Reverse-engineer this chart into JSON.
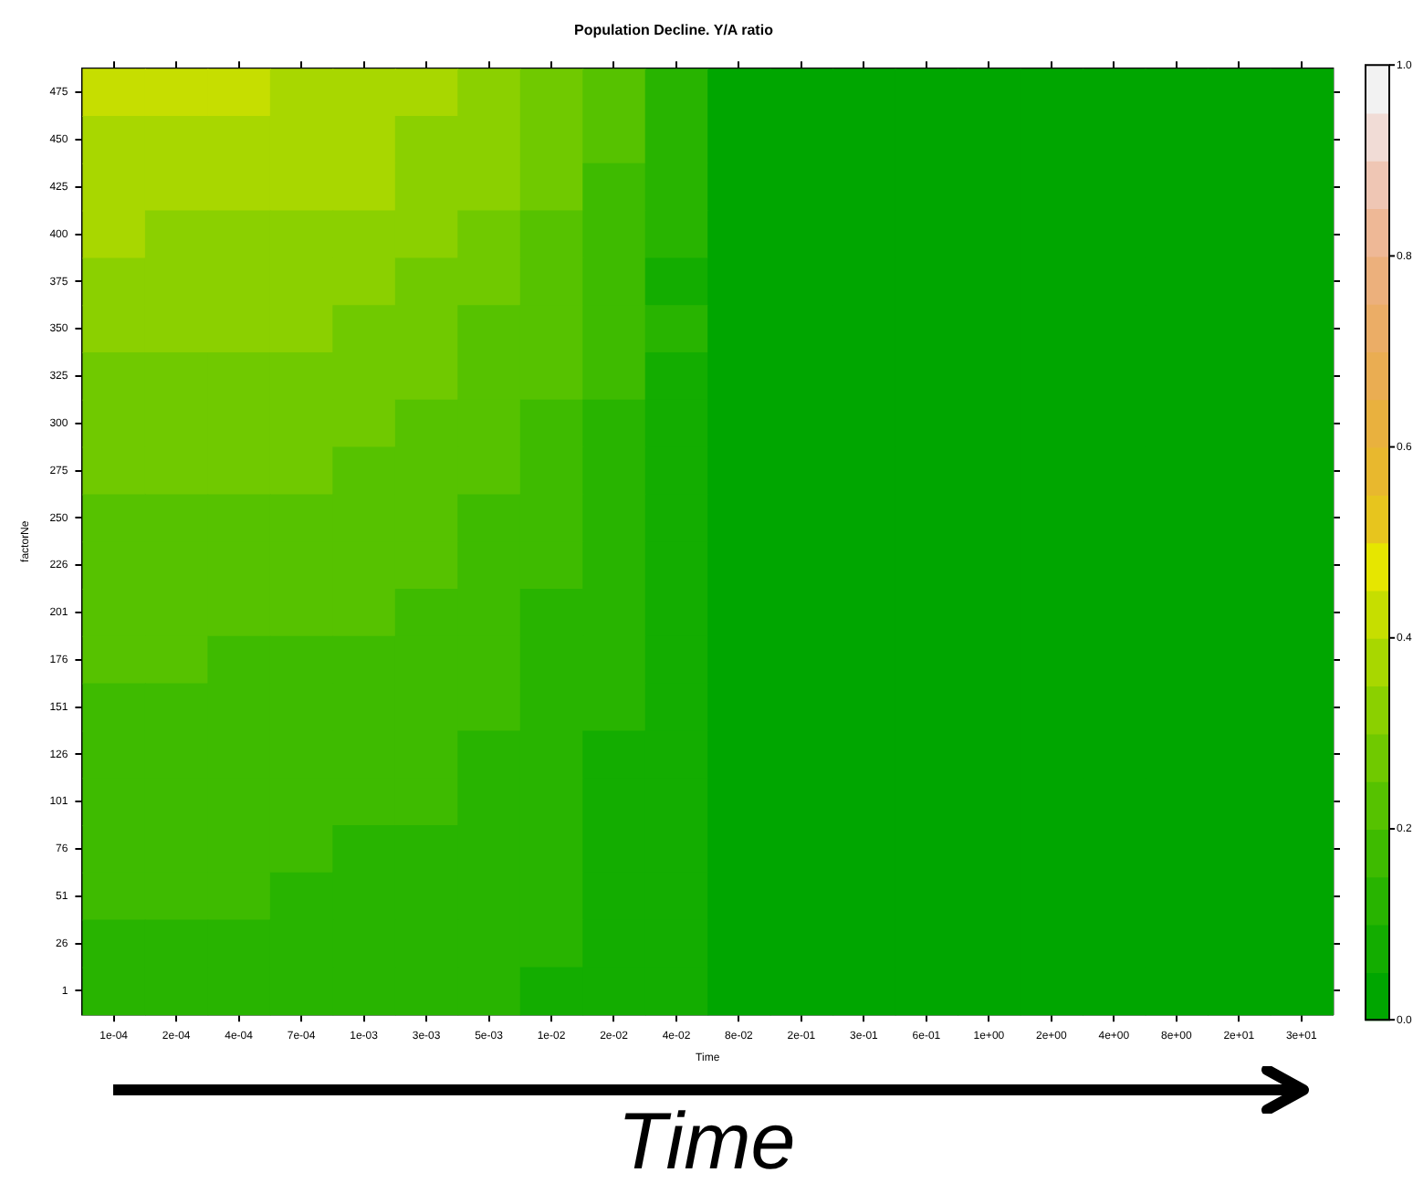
{
  "chart_data": {
    "type": "heatmap",
    "title": "Population Decline. Y/A ratio",
    "xlabel": "Time",
    "ylabel": "factorNe",
    "categories": [
      "1e-04",
      "2e-04",
      "4e-04",
      "7e-04",
      "1e-03",
      "3e-03",
      "5e-03",
      "1e-02",
      "2e-02",
      "4e-02",
      "8e-02",
      "2e-01",
      "3e-01",
      "6e-01",
      "1e+00",
      "2e+00",
      "4e+00",
      "8e+00",
      "2e+01",
      "3e+01"
    ],
    "y_categories": [
      "475",
      "450",
      "425",
      "400",
      "375",
      "350",
      "325",
      "300",
      "275",
      "250",
      "226",
      "201",
      "176",
      "151",
      "126",
      "101",
      "76",
      "51",
      "26",
      "1"
    ],
    "cells": [
      [
        0.425,
        0.425,
        0.425,
        0.375,
        0.375,
        0.375,
        0.325,
        0.275,
        0.225,
        0.125,
        0.025,
        0.025,
        0.025,
        0.025,
        0.025,
        0.025,
        0.025,
        0.025,
        0.025,
        0.025
      ],
      [
        0.375,
        0.375,
        0.375,
        0.375,
        0.375,
        0.325,
        0.325,
        0.275,
        0.225,
        0.125,
        0.025,
        0.025,
        0.025,
        0.025,
        0.025,
        0.025,
        0.025,
        0.025,
        0.025,
        0.025
      ],
      [
        0.375,
        0.375,
        0.375,
        0.375,
        0.375,
        0.325,
        0.325,
        0.275,
        0.175,
        0.125,
        0.025,
        0.025,
        0.025,
        0.025,
        0.025,
        0.025,
        0.025,
        0.025,
        0.025,
        0.025
      ],
      [
        0.375,
        0.325,
        0.325,
        0.325,
        0.325,
        0.325,
        0.275,
        0.225,
        0.175,
        0.125,
        0.025,
        0.025,
        0.025,
        0.025,
        0.025,
        0.025,
        0.025,
        0.025,
        0.025,
        0.025
      ],
      [
        0.325,
        0.325,
        0.325,
        0.325,
        0.325,
        0.275,
        0.275,
        0.225,
        0.175,
        0.075,
        0.025,
        0.025,
        0.025,
        0.025,
        0.025,
        0.025,
        0.025,
        0.025,
        0.025,
        0.025
      ],
      [
        0.325,
        0.325,
        0.325,
        0.325,
        0.275,
        0.275,
        0.225,
        0.225,
        0.175,
        0.125,
        0.025,
        0.025,
        0.025,
        0.025,
        0.025,
        0.025,
        0.025,
        0.025,
        0.025,
        0.025
      ],
      [
        0.275,
        0.275,
        0.275,
        0.275,
        0.275,
        0.275,
        0.225,
        0.225,
        0.175,
        0.075,
        0.025,
        0.025,
        0.025,
        0.025,
        0.025,
        0.025,
        0.025,
        0.025,
        0.025,
        0.025
      ],
      [
        0.275,
        0.275,
        0.275,
        0.275,
        0.275,
        0.225,
        0.225,
        0.175,
        0.125,
        0.075,
        0.025,
        0.025,
        0.025,
        0.025,
        0.025,
        0.025,
        0.025,
        0.025,
        0.025,
        0.025
      ],
      [
        0.275,
        0.275,
        0.275,
        0.275,
        0.225,
        0.225,
        0.225,
        0.175,
        0.125,
        0.075,
        0.025,
        0.025,
        0.025,
        0.025,
        0.025,
        0.025,
        0.025,
        0.025,
        0.025,
        0.025
      ],
      [
        0.225,
        0.225,
        0.225,
        0.225,
        0.225,
        0.225,
        0.175,
        0.175,
        0.125,
        0.075,
        0.025,
        0.025,
        0.025,
        0.025,
        0.025,
        0.025,
        0.025,
        0.025,
        0.025,
        0.025
      ],
      [
        0.225,
        0.225,
        0.225,
        0.225,
        0.225,
        0.225,
        0.175,
        0.175,
        0.125,
        0.075,
        0.025,
        0.025,
        0.025,
        0.025,
        0.025,
        0.025,
        0.025,
        0.025,
        0.025,
        0.025
      ],
      [
        0.225,
        0.225,
        0.225,
        0.225,
        0.225,
        0.175,
        0.175,
        0.125,
        0.125,
        0.075,
        0.025,
        0.025,
        0.025,
        0.025,
        0.025,
        0.025,
        0.025,
        0.025,
        0.025,
        0.025
      ],
      [
        0.225,
        0.225,
        0.175,
        0.175,
        0.175,
        0.175,
        0.175,
        0.125,
        0.125,
        0.075,
        0.025,
        0.025,
        0.025,
        0.025,
        0.025,
        0.025,
        0.025,
        0.025,
        0.025,
        0.025
      ],
      [
        0.175,
        0.175,
        0.175,
        0.175,
        0.175,
        0.175,
        0.175,
        0.125,
        0.125,
        0.075,
        0.025,
        0.025,
        0.025,
        0.025,
        0.025,
        0.025,
        0.025,
        0.025,
        0.025,
        0.025
      ],
      [
        0.175,
        0.175,
        0.175,
        0.175,
        0.175,
        0.175,
        0.125,
        0.125,
        0.075,
        0.075,
        0.025,
        0.025,
        0.025,
        0.025,
        0.025,
        0.025,
        0.025,
        0.025,
        0.025,
        0.025
      ],
      [
        0.175,
        0.175,
        0.175,
        0.175,
        0.175,
        0.175,
        0.125,
        0.125,
        0.075,
        0.075,
        0.025,
        0.025,
        0.025,
        0.025,
        0.025,
        0.025,
        0.025,
        0.025,
        0.025,
        0.025
      ],
      [
        0.175,
        0.175,
        0.175,
        0.175,
        0.125,
        0.125,
        0.125,
        0.125,
        0.075,
        0.075,
        0.025,
        0.025,
        0.025,
        0.025,
        0.025,
        0.025,
        0.025,
        0.025,
        0.025,
        0.025
      ],
      [
        0.175,
        0.175,
        0.175,
        0.125,
        0.125,
        0.125,
        0.125,
        0.125,
        0.075,
        0.075,
        0.025,
        0.025,
        0.025,
        0.025,
        0.025,
        0.025,
        0.025,
        0.025,
        0.025,
        0.025
      ],
      [
        0.125,
        0.125,
        0.125,
        0.125,
        0.125,
        0.125,
        0.125,
        0.125,
        0.075,
        0.075,
        0.025,
        0.025,
        0.025,
        0.025,
        0.025,
        0.025,
        0.025,
        0.025,
        0.025,
        0.025
      ],
      [
        0.125,
        0.125,
        0.125,
        0.125,
        0.125,
        0.125,
        0.125,
        0.075,
        0.075,
        0.075,
        0.025,
        0.025,
        0.025,
        0.025,
        0.025,
        0.025,
        0.025,
        0.025,
        0.025,
        0.025
      ]
    ],
    "colors": [
      "#00a600",
      "#13ad00",
      "#28b400",
      "#3ebb00",
      "#56c200",
      "#70c900",
      "#8bd000",
      "#a8d700",
      "#c6de00",
      "#e6e600",
      "#e7c51e",
      "#e8b82e",
      "#e9b13e",
      "#eaad52",
      "#ebad66",
      "#ecb07c",
      "#eeb896",
      "#efc6b4",
      "#f1dcd6",
      "#f2f2f2"
    ],
    "clim": [
      0,
      1
    ],
    "cticks": [
      {
        "value": 0,
        "label": "0.0"
      },
      {
        "value": 0.2,
        "label": "0.2"
      },
      {
        "value": 0.4,
        "label": "0.4"
      },
      {
        "value": 0.6,
        "label": "0.6"
      },
      {
        "value": 0.8,
        "label": "0.8"
      },
      {
        "value": 1,
        "label": "1.0"
      }
    ],
    "annotations": [
      "Time"
    ]
  }
}
